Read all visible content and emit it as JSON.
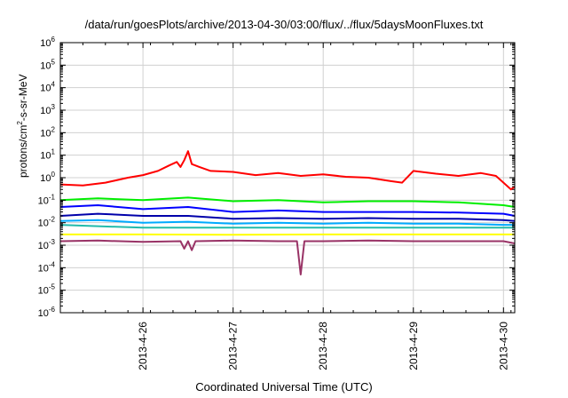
{
  "chart_data": {
    "type": "line",
    "title": "/data/run/goesPlots/archive/2013-04-30/03:00/flux/../flux/5daysMoonFluxes.txt",
    "xlabel": "Coordinated Universal Time (UTC)",
    "ylabel": {
      "pre": "protons/cm",
      "sup": "2",
      "post": "-s-sr-MeV"
    },
    "xlim": [
      "2013-04-25 02:00",
      "2013-04-30 03:00"
    ],
    "x_ticks": [
      "2013-4-26",
      "2013-4-27",
      "2013-4-28",
      "2013-4-29",
      "2013-4-30"
    ],
    "x_tick_times": [
      "2013-04-26 00:00",
      "2013-04-27 00:00",
      "2013-04-28 00:00",
      "2013-04-29 00:00",
      "2013-04-30 00:00"
    ],
    "y_scale": "log",
    "ylim": [
      1e-06,
      1000000.0
    ],
    "y_ticks": [
      {
        "base": "10",
        "exp": "6"
      },
      {
        "base": "10",
        "exp": "5"
      },
      {
        "base": "10",
        "exp": "4"
      },
      {
        "base": "10",
        "exp": "3"
      },
      {
        "base": "10",
        "exp": "2"
      },
      {
        "base": "10",
        "exp": "1"
      },
      {
        "base": "10",
        "exp": "0"
      },
      {
        "base": "10",
        "exp": "-1"
      },
      {
        "base": "10",
        "exp": "-2"
      },
      {
        "base": "10",
        "exp": "-3"
      },
      {
        "base": "10",
        "exp": "-4"
      },
      {
        "base": "10",
        "exp": "-5"
      },
      {
        "base": "10",
        "exp": "-6"
      }
    ],
    "grid": true,
    "series": [
      {
        "color": "#ff0000",
        "points": [
          [
            "2013-04-25 02:00",
            0.5
          ],
          [
            "2013-04-25 08:00",
            0.45
          ],
          [
            "2013-04-25 14:00",
            0.6
          ],
          [
            "2013-04-25 20:00",
            1.0
          ],
          [
            "2013-04-26 00:00",
            1.3
          ],
          [
            "2013-04-26 04:00",
            2.0
          ],
          [
            "2013-04-26 07:00",
            3.5
          ],
          [
            "2013-04-26 09:00",
            5.0
          ],
          [
            "2013-04-26 10:00",
            3.0
          ],
          [
            "2013-04-26 11:00",
            6.0
          ],
          [
            "2013-04-26 12:00",
            15.0
          ],
          [
            "2013-04-26 13:00",
            4.0
          ],
          [
            "2013-04-26 15:00",
            3.0
          ],
          [
            "2013-04-26 18:00",
            2.0
          ],
          [
            "2013-04-27 00:00",
            1.8
          ],
          [
            "2013-04-27 06:00",
            1.3
          ],
          [
            "2013-04-27 12:00",
            1.6
          ],
          [
            "2013-04-27 18:00",
            1.2
          ],
          [
            "2013-04-28 00:00",
            1.4
          ],
          [
            "2013-04-28 06:00",
            1.1
          ],
          [
            "2013-04-28 12:00",
            1.0
          ],
          [
            "2013-04-28 18:00",
            0.7
          ],
          [
            "2013-04-28 21:00",
            0.6
          ],
          [
            "2013-04-29 00:00",
            2.0
          ],
          [
            "2013-04-29 06:00",
            1.5
          ],
          [
            "2013-04-29 12:00",
            1.2
          ],
          [
            "2013-04-29 18:00",
            1.6
          ],
          [
            "2013-04-29 22:00",
            1.2
          ],
          [
            "2013-04-30 00:00",
            0.6
          ],
          [
            "2013-04-30 02:00",
            0.3
          ],
          [
            "2013-04-30 03:00",
            0.4
          ]
        ]
      },
      {
        "color": "#00ee00",
        "points": [
          [
            "2013-04-25 02:00",
            0.1
          ],
          [
            "2013-04-25 12:00",
            0.12
          ],
          [
            "2013-04-26 00:00",
            0.1
          ],
          [
            "2013-04-26 12:00",
            0.13
          ],
          [
            "2013-04-27 00:00",
            0.09
          ],
          [
            "2013-04-27 12:00",
            0.1
          ],
          [
            "2013-04-28 00:00",
            0.08
          ],
          [
            "2013-04-28 12:00",
            0.09
          ],
          [
            "2013-04-29 00:00",
            0.09
          ],
          [
            "2013-04-29 12:00",
            0.08
          ],
          [
            "2013-04-30 00:00",
            0.06
          ],
          [
            "2013-04-30 03:00",
            0.05
          ]
        ]
      },
      {
        "color": "#0000ff",
        "points": [
          [
            "2013-04-25 02:00",
            0.05
          ],
          [
            "2013-04-25 12:00",
            0.06
          ],
          [
            "2013-04-26 00:00",
            0.04
          ],
          [
            "2013-04-26 12:00",
            0.05
          ],
          [
            "2013-04-27 00:00",
            0.03
          ],
          [
            "2013-04-27 12:00",
            0.035
          ],
          [
            "2013-04-28 00:00",
            0.03
          ],
          [
            "2013-04-28 12:00",
            0.03
          ],
          [
            "2013-04-29 00:00",
            0.03
          ],
          [
            "2013-04-29 12:00",
            0.028
          ],
          [
            "2013-04-30 00:00",
            0.025
          ],
          [
            "2013-04-30 03:00",
            0.02
          ]
        ]
      },
      {
        "color": "#0000aa",
        "points": [
          [
            "2013-04-25 02:00",
            0.02
          ],
          [
            "2013-04-25 12:00",
            0.025
          ],
          [
            "2013-04-26 00:00",
            0.02
          ],
          [
            "2013-04-26 12:00",
            0.02
          ],
          [
            "2013-04-27 00:00",
            0.015
          ],
          [
            "2013-04-27 12:00",
            0.016
          ],
          [
            "2013-04-28 00:00",
            0.015
          ],
          [
            "2013-04-28 12:00",
            0.016
          ],
          [
            "2013-04-29 00:00",
            0.015
          ],
          [
            "2013-04-29 12:00",
            0.015
          ],
          [
            "2013-04-30 00:00",
            0.013
          ],
          [
            "2013-04-30 03:00",
            0.012
          ]
        ]
      },
      {
        "color": "#00aaff",
        "points": [
          [
            "2013-04-25 02:00",
            0.012
          ],
          [
            "2013-04-25 12:00",
            0.013
          ],
          [
            "2013-04-26 00:00",
            0.01
          ],
          [
            "2013-04-26 12:00",
            0.011
          ],
          [
            "2013-04-27 00:00",
            0.009
          ],
          [
            "2013-04-27 12:00",
            0.01
          ],
          [
            "2013-04-28 00:00",
            0.009
          ],
          [
            "2013-04-28 12:00",
            0.01
          ],
          [
            "2013-04-29 00:00",
            0.009
          ],
          [
            "2013-04-29 12:00",
            0.009
          ],
          [
            "2013-04-30 00:00",
            0.008
          ],
          [
            "2013-04-30 03:00",
            0.008
          ]
        ]
      },
      {
        "color": "#22bbaa",
        "points": [
          [
            "2013-04-25 02:00",
            0.008
          ],
          [
            "2013-04-25 12:00",
            0.007
          ],
          [
            "2013-04-26 00:00",
            0.006
          ],
          [
            "2013-04-26 12:00",
            0.006
          ],
          [
            "2013-04-27 00:00",
            0.006
          ],
          [
            "2013-04-27 12:00",
            0.006
          ],
          [
            "2013-04-28 00:00",
            0.006
          ],
          [
            "2013-04-28 12:00",
            0.006
          ],
          [
            "2013-04-29 00:00",
            0.006
          ],
          [
            "2013-04-29 12:00",
            0.006
          ],
          [
            "2013-04-30 00:00",
            0.006
          ],
          [
            "2013-04-30 03:00",
            0.006
          ]
        ]
      },
      {
        "color": "#ffff00",
        "points": [
          [
            "2013-04-25 02:00",
            0.003
          ],
          [
            "2013-04-26 00:00",
            0.003
          ],
          [
            "2013-04-27 00:00",
            0.0029
          ],
          [
            "2013-04-28 00:00",
            0.003
          ],
          [
            "2013-04-29 00:00",
            0.003
          ],
          [
            "2013-04-30 00:00",
            0.003
          ],
          [
            "2013-04-30 03:00",
            0.003
          ]
        ]
      },
      {
        "color": "#993366",
        "points": [
          [
            "2013-04-25 02:00",
            0.0015
          ],
          [
            "2013-04-25 12:00",
            0.0016
          ],
          [
            "2013-04-26 00:00",
            0.0014
          ],
          [
            "2013-04-26 10:00",
            0.0015
          ],
          [
            "2013-04-26 11:00",
            0.0007
          ],
          [
            "2013-04-26 12:00",
            0.0015
          ],
          [
            "2013-04-26 13:00",
            0.0006
          ],
          [
            "2013-04-26 14:00",
            0.0015
          ],
          [
            "2013-04-27 00:00",
            0.0016
          ],
          [
            "2013-04-27 12:00",
            0.0015
          ],
          [
            "2013-04-27 17:00",
            0.0015
          ],
          [
            "2013-04-27 18:00",
            5e-05
          ],
          [
            "2013-04-27 19:00",
            0.0015
          ],
          [
            "2013-04-28 00:00",
            0.0015
          ],
          [
            "2013-04-28 12:00",
            0.0016
          ],
          [
            "2013-04-29 00:00",
            0.0015
          ],
          [
            "2013-04-29 12:00",
            0.0015
          ],
          [
            "2013-04-30 00:00",
            0.0015
          ],
          [
            "2013-04-30 03:00",
            0.0012
          ]
        ]
      }
    ]
  }
}
